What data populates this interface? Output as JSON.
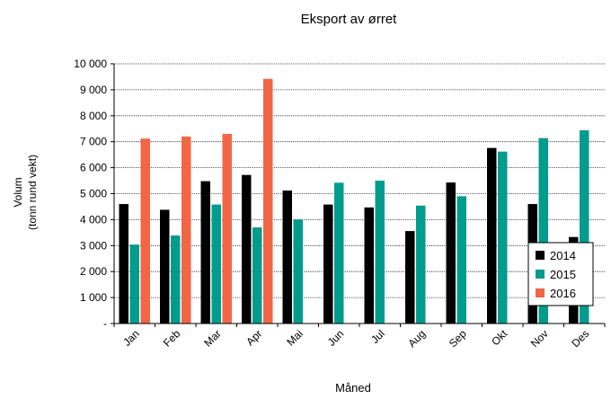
{
  "chart_data": {
    "type": "bar",
    "title": "Eksport av ørret",
    "xlabel": "Måned",
    "ylabel": [
      "Volum",
      "(tonn rund vekt)"
    ],
    "categories": [
      "Jan",
      "Feb",
      "Mar",
      "Apr",
      "Mai",
      "Jun",
      "Jul",
      "Aug",
      "Sep",
      "Okt",
      "Nov",
      "Des"
    ],
    "ylim": [
      0,
      10000
    ],
    "yticks": [
      0,
      1000,
      2000,
      3000,
      4000,
      5000,
      6000,
      7000,
      8000,
      9000,
      10000
    ],
    "ytick_labels": [
      "-",
      "1 000",
      "2 000",
      "3 000",
      "4 000",
      "5 000",
      "6 000",
      "7 000",
      "8 000",
      "9 000",
      "10 000"
    ],
    "grid": "horizontal-dotted",
    "legend_position": "bottom-right",
    "series": [
      {
        "name": "2014",
        "color": "#000000",
        "values": [
          4600,
          4380,
          5480,
          5720,
          5120,
          4580,
          4470,
          3560,
          5430,
          6760,
          4600,
          3330
        ]
      },
      {
        "name": "2015",
        "color": "#009C8E",
        "values": [
          3040,
          3390,
          4580,
          3700,
          4000,
          5420,
          5500,
          4540,
          4900,
          6620,
          7140,
          7440
        ]
      },
      {
        "name": "2016",
        "color": "#F26646",
        "values": [
          7120,
          7200,
          7300,
          9420,
          null,
          null,
          null,
          null,
          null,
          null,
          null,
          null
        ]
      }
    ]
  }
}
